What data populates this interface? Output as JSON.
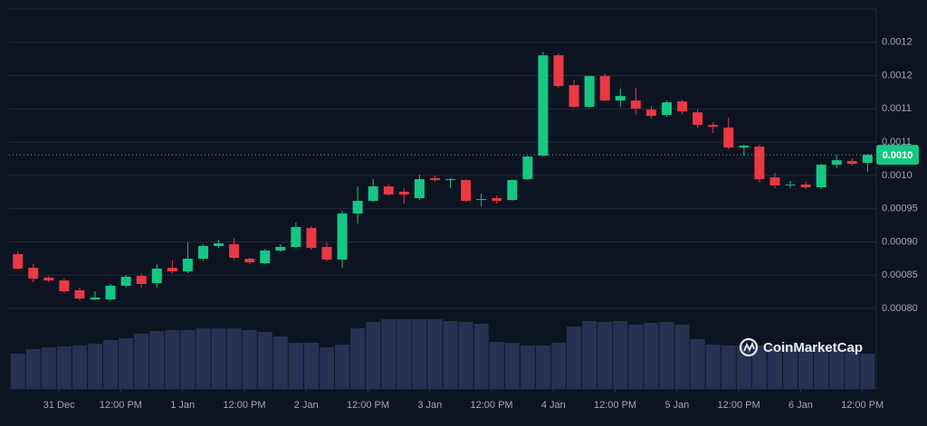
{
  "chart_data": {
    "type": "candlestick",
    "x": [
      -8,
      -5,
      -2,
      1,
      4,
      7,
      10,
      13,
      16,
      19,
      22,
      25,
      28,
      31,
      34,
      37,
      40,
      43,
      46,
      49,
      52,
      55,
      58,
      61,
      64,
      67,
      70,
      73,
      76,
      79,
      82,
      85,
      88,
      91,
      94,
      97,
      100,
      103,
      106,
      109,
      112,
      115,
      118,
      121,
      124,
      127,
      130,
      133,
      136,
      139,
      142,
      145,
      148,
      151,
      154,
      157
    ],
    "open": [
      0.0008815,
      0.0008611,
      0.0008462,
      0.0008421,
      0.0008272,
      0.0008136,
      0.0008136,
      0.000834,
      0.0008489,
      0.000838,
      0.0008611,
      0.0008557,
      0.0008747,
      0.0008938,
      0.0008965,
      0.0008747,
      0.0008679,
      0.000887,
      0.0008924,
      0.0009209,
      0.0008924,
      0.0008734,
      0.0009427,
      0.0009617,
      0.0009834,
      0.0009753,
      0.0009658,
      0.0009957,
      0.0009929,
      0.0009929,
      0.000963,
      0.0009658,
      0.000963,
      0.0009943,
      0.0010296,
      0.0011804,
      0.0011356,
      0.001103,
      0.0011492,
      0.0011125,
      0.0011125,
      0.0010989,
      0.0010908,
      0.0011111,
      0.0010948,
      0.0010758,
      0.0010717,
      0.0010418,
      0.0010432,
      0.000997,
      0.0009848,
      0.0009861,
      0.0009821,
      0.001016,
      0.0010215,
      0.0010187
    ],
    "high": [
      0.0008856,
      0.0008666,
      0.0008489,
      0.0008448,
      0.0008313,
      0.0008258,
      0.0008367,
      0.0008503,
      0.000853,
      0.0008666,
      0.000872,
      0.0008992,
      0.0008965,
      0.0009033,
      0.000906,
      0.0008761,
      0.0008897,
      0.0008965,
      0.0009291,
      0.0009236,
      0.0008992,
      0.0009467,
      0.0009834,
      0.0009943,
      0.0009861,
      0.0009807,
      0.0010011,
      0.0009997,
      0.0009957,
      0.0009943,
      0.0009725,
      0.0009698,
      0.0009943,
      0.0010296,
      0.0011859,
      0.0011832,
      0.0011437,
      0.0011492,
      0.0011533,
      0.0011302,
      0.0011315,
      0.0011043,
      0.0011125,
      0.0011139,
      0.0010989,
      0.0010799,
      0.0010867,
      0.0010459,
      0.0010459,
      0.0010038,
      0.0009916,
      0.0009902,
      0.0010174,
      0.001031,
      0.0010255,
      0.0010323
    ],
    "low": [
      0.0008584,
      0.0008394,
      0.0008394,
      0.0008231,
      0.0008122,
      0.0008122,
      0.0008109,
      0.0008313,
      0.0008313,
      0.0008313,
      0.000853,
      0.000853,
      0.000872,
      0.000891,
      0.0008734,
      0.0008666,
      0.0008666,
      0.0008856,
      0.000891,
      0.0008883,
      0.0008707,
      0.0008611,
      0.0009277,
      0.0009603,
      0.0009698,
      0.0009576,
      0.000963,
      0.0009902,
      0.0009807,
      0.0009603,
      0.0009535,
      0.0009576,
      0.0009617,
      0.0009929,
      0.0010283,
      0.0011315,
      0.0011016,
      0.0011016,
      0.0011111,
      0.001103,
      0.0010908,
      0.0010853,
      0.001088,
      0.0010921,
      0.0010717,
      0.0010636,
      0.0010391,
      0.0010296,
      0.0009889,
      0.0009807,
      0.0009807,
      0.0009793,
      0.0009793,
      0.0010106,
      0.0010147,
      0.0010052
    ],
    "close": [
      0.0008598,
      0.0008448,
      0.0008421,
      0.0008258,
      0.0008149,
      0.0008163,
      0.000834,
      0.0008476,
      0.0008367,
      0.0008598,
      0.0008557,
      0.0008747,
      0.0008938,
      0.0008978,
      0.0008761,
      0.0008693,
      0.000887,
      0.0008924,
      0.0009223,
      0.000891,
      0.0008734,
      0.0009427,
      0.0009617,
      0.0009834,
      0.0009712,
      0.0009712,
      0.0009943,
      0.0009929,
      0.0009943,
      0.0009617,
      0.0009644,
      0.0009617,
      0.0009929,
      0.0010283,
      0.0011804,
      0.0011342,
      0.001103,
      0.0011492,
      0.0011125,
      0.0011193,
      0.0011003,
      0.0010894,
      0.0011098,
      0.0010962,
      0.0010758,
      0.0010731,
      0.0010418,
      0.0010446,
      0.0009943,
      0.0009848,
      0.0009861,
      0.0009821,
      0.001016,
      0.0010228,
      0.0010174,
      0.001031
    ],
    "volume": [
      39,
      44,
      46,
      47,
      48,
      50,
      54,
      56,
      61,
      64,
      65,
      65,
      67,
      67,
      67,
      65,
      63,
      58,
      51,
      51,
      46,
      49,
      67,
      74,
      77,
      77,
      77,
      77,
      75,
      74,
      72,
      52,
      51,
      48,
      48,
      51,
      69,
      75,
      74,
      75,
      71,
      73,
      74,
      71,
      55,
      49,
      48,
      48,
      48,
      48,
      48,
      46,
      48,
      45,
      45,
      39
    ],
    "up_color": "#16c784",
    "down_color": "#ea3943",
    "volume_color": "#283152",
    "xlim": [
      -9.7,
      158.7
    ],
    "xticks": [
      {
        "value": 0,
        "label": "31 Dec"
      },
      {
        "value": 12,
        "label": "12:00 PM"
      },
      {
        "value": 24,
        "label": "1 Jan"
      },
      {
        "value": 36,
        "label": "12:00 PM"
      },
      {
        "value": 48,
        "label": "2 Jan"
      },
      {
        "value": 60,
        "label": "12:00 PM"
      },
      {
        "value": 72,
        "label": "3 Jan"
      },
      {
        "value": 84,
        "label": "12:00 PM"
      },
      {
        "value": 96,
        "label": "4 Jan"
      },
      {
        "value": 108,
        "label": "12:00 PM"
      },
      {
        "value": 120,
        "label": "5 Jan"
      },
      {
        "value": 132,
        "label": "12:00 PM"
      },
      {
        "value": 144,
        "label": "6 Jan"
      },
      {
        "value": 156,
        "label": "12:00 PM"
      }
    ],
    "ylim": [
      0.000679,
      0.00125
    ],
    "yticks": [
      {
        "value": 0.0008,
        "label": "0.00080"
      },
      0.00085,
      {
        "value": 0.0009,
        "label": "0.00090"
      },
      0.00095,
      {
        "value": 0.001,
        "label": "0.0010"
      },
      {
        "value": 0.00105,
        "label": "0.0011"
      },
      0.0011,
      {
        "value": 0.00115,
        "label": "0.0012"
      },
      0.0012
    ],
    "grid": true,
    "price_label": {
      "value": 0.001031,
      "label": "0.0010"
    },
    "watermark": "CoinMarketCap"
  }
}
